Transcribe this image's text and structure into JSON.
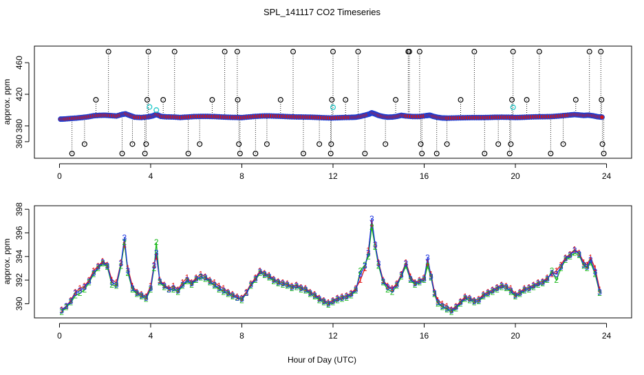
{
  "title": "SPL_141117  CO2 Timeseries",
  "xlabel": "Hour of Day (UTC)",
  "chart_data": [
    {
      "type": "scatter",
      "ylabel": "approx. ppm",
      "xlim": [
        -1.1,
        25.1
      ],
      "ylim": [
        339,
        481
      ],
      "x_ticks": [
        0,
        4,
        8,
        12,
        16,
        20,
        24
      ],
      "y_ticks": [
        360,
        380,
        420,
        460
      ],
      "grid": false,
      "colors": {
        "baseline_outline": "#1a3fd6",
        "baseline_fill": "#d01818",
        "outlier": "#000000",
        "cyan_outlier": "#20c8c8",
        "spike_line": "#000000"
      },
      "baseline": [
        [
          0.05,
          388.5
        ],
        [
          0.25,
          388.8
        ],
        [
          0.5,
          389.4
        ],
        [
          0.75,
          389.9
        ],
        [
          1.0,
          390.6
        ],
        [
          1.25,
          391.5
        ],
        [
          1.5,
          392.8
        ],
        [
          1.75,
          393.3
        ],
        [
          2.0,
          393.5
        ],
        [
          2.25,
          393.0
        ],
        [
          2.5,
          392.5
        ],
        [
          2.75,
          394.5
        ],
        [
          2.9,
          395.2
        ],
        [
          3.1,
          393.0
        ],
        [
          3.3,
          391.0
        ],
        [
          3.6,
          390.6
        ],
        [
          3.9,
          391.5
        ],
        [
          4.1,
          392.7
        ],
        [
          4.25,
          394.5
        ],
        [
          4.45,
          392.0
        ],
        [
          4.7,
          391.4
        ],
        [
          5.0,
          391.2
        ],
        [
          5.3,
          390.6
        ],
        [
          5.6,
          391.2
        ],
        [
          5.9,
          391.8
        ],
        [
          6.2,
          392.0
        ],
        [
          6.5,
          392.0
        ],
        [
          6.8,
          391.8
        ],
        [
          7.1,
          391.3
        ],
        [
          7.4,
          390.9
        ],
        [
          7.7,
          390.7
        ],
        [
          8.0,
          390.5
        ],
        [
          8.3,
          391.3
        ],
        [
          8.6,
          392.0
        ],
        [
          8.9,
          392.5
        ],
        [
          9.2,
          392.6
        ],
        [
          9.5,
          392.3
        ],
        [
          9.8,
          392.0
        ],
        [
          10.1,
          391.6
        ],
        [
          10.4,
          391.3
        ],
        [
          10.7,
          391.2
        ],
        [
          11.0,
          391.0
        ],
        [
          11.3,
          390.7
        ],
        [
          11.6,
          390.3
        ],
        [
          11.9,
          390.0
        ],
        [
          12.2,
          390.3
        ],
        [
          12.5,
          390.6
        ],
        [
          12.8,
          390.8
        ],
        [
          13.0,
          391.0
        ],
        [
          13.2,
          392.0
        ],
        [
          13.4,
          393.5
        ],
        [
          13.6,
          395.0
        ],
        [
          13.7,
          396.5
        ],
        [
          13.85,
          395.0
        ],
        [
          14.0,
          393.2
        ],
        [
          14.2,
          391.8
        ],
        [
          14.4,
          391.0
        ],
        [
          14.6,
          391.2
        ],
        [
          14.8,
          392.0
        ],
        [
          15.0,
          393.3
        ],
        [
          15.2,
          392.5
        ],
        [
          15.5,
          391.8
        ],
        [
          15.8,
          391.8
        ],
        [
          16.1,
          393.0
        ],
        [
          16.25,
          393.5
        ],
        [
          16.4,
          392.0
        ],
        [
          16.6,
          390.7
        ],
        [
          16.8,
          390.0
        ],
        [
          17.0,
          389.8
        ],
        [
          17.3,
          390.0
        ],
        [
          17.6,
          390.2
        ],
        [
          17.9,
          390.4
        ],
        [
          18.2,
          390.5
        ],
        [
          18.5,
          390.5
        ],
        [
          18.8,
          390.6
        ],
        [
          19.1,
          390.9
        ],
        [
          19.4,
          391.0
        ],
        [
          19.7,
          390.9
        ],
        [
          20.0,
          390.6
        ],
        [
          20.3,
          390.8
        ],
        [
          20.6,
          391.2
        ],
        [
          20.9,
          391.5
        ],
        [
          21.2,
          391.6
        ],
        [
          21.5,
          391.7
        ],
        [
          21.8,
          392.2
        ],
        [
          22.1,
          393.0
        ],
        [
          22.4,
          393.8
        ],
        [
          22.6,
          394.3
        ],
        [
          22.8,
          393.8
        ],
        [
          23.0,
          393.2
        ],
        [
          23.2,
          393.6
        ],
        [
          23.4,
          392.8
        ],
        [
          23.6,
          391.6
        ],
        [
          23.8,
          391.0
        ]
      ],
      "cyan_points": [
        [
          3.95,
          404
        ],
        [
          4.25,
          400
        ],
        [
          12.0,
          403.5
        ],
        [
          19.9,
          403.5
        ]
      ],
      "outliers": [
        [
          0.55,
          345
        ],
        [
          1.1,
          357
        ],
        [
          1.6,
          413
        ],
        [
          2.15,
          474
        ],
        [
          2.75,
          345
        ],
        [
          3.2,
          357
        ],
        [
          3.75,
          345
        ],
        [
          3.8,
          357
        ],
        [
          3.85,
          413
        ],
        [
          3.9,
          474
        ],
        [
          4.55,
          413
        ],
        [
          5.05,
          474
        ],
        [
          5.65,
          345
        ],
        [
          6.15,
          357
        ],
        [
          6.7,
          413
        ],
        [
          7.25,
          474
        ],
        [
          7.8,
          474
        ],
        [
          7.82,
          413
        ],
        [
          7.87,
          357
        ],
        [
          7.92,
          345
        ],
        [
          8.6,
          345
        ],
        [
          9.1,
          357
        ],
        [
          9.7,
          413
        ],
        [
          10.25,
          474
        ],
        [
          10.7,
          345
        ],
        [
          11.4,
          357
        ],
        [
          11.9,
          345
        ],
        [
          11.92,
          357
        ],
        [
          11.95,
          413
        ],
        [
          12.0,
          474
        ],
        [
          12.55,
          413
        ],
        [
          13.1,
          474
        ],
        [
          13.4,
          345
        ],
        [
          14.3,
          357
        ],
        [
          14.75,
          413
        ],
        [
          15.3,
          474
        ],
        [
          15.35,
          474
        ],
        [
          15.8,
          474
        ],
        [
          15.85,
          357
        ],
        [
          15.9,
          345
        ],
        [
          16.55,
          345
        ],
        [
          17.0,
          357
        ],
        [
          17.6,
          413
        ],
        [
          18.2,
          474
        ],
        [
          18.65,
          345
        ],
        [
          19.25,
          357
        ],
        [
          19.75,
          345
        ],
        [
          19.8,
          357
        ],
        [
          19.85,
          413
        ],
        [
          19.9,
          474
        ],
        [
          20.5,
          413
        ],
        [
          21.05,
          474
        ],
        [
          21.55,
          345
        ],
        [
          22.1,
          357
        ],
        [
          22.65,
          413
        ],
        [
          23.25,
          474
        ],
        [
          23.75,
          474
        ],
        [
          23.78,
          413
        ],
        [
          23.82,
          357
        ],
        [
          23.88,
          345
        ]
      ]
    },
    {
      "type": "line",
      "ylabel": "approx. ppm",
      "xlim": [
        -1.1,
        25.1
      ],
      "ylim": [
        388.8,
        398.3
      ],
      "x_ticks": [
        0,
        4,
        8,
        12,
        16,
        20,
        24
      ],
      "y_ticks": [
        390,
        392,
        394,
        396,
        398
      ],
      "grid": false,
      "marker_labels": [
        "1",
        "2",
        "3"
      ],
      "colors": {
        "1": "#e01818",
        "2": "#18b818",
        "3": "#1830e0"
      },
      "x": [
        0.1,
        0.3,
        0.5,
        0.7,
        0.9,
        1.1,
        1.3,
        1.5,
        1.7,
        1.9,
        2.1,
        2.3,
        2.5,
        2.7,
        2.85,
        3.0,
        3.2,
        3.4,
        3.6,
        3.8,
        4.0,
        4.15,
        4.25,
        4.4,
        4.6,
        4.8,
        5.0,
        5.2,
        5.4,
        5.6,
        5.8,
        6.0,
        6.2,
        6.4,
        6.6,
        6.8,
        7.0,
        7.2,
        7.4,
        7.6,
        7.8,
        8.0,
        8.2,
        8.4,
        8.6,
        8.8,
        9.0,
        9.2,
        9.4,
        9.6,
        9.8,
        10.0,
        10.2,
        10.4,
        10.6,
        10.8,
        11.0,
        11.2,
        11.4,
        11.6,
        11.8,
        12.0,
        12.2,
        12.4,
        12.6,
        12.8,
        13.0,
        13.2,
        13.4,
        13.55,
        13.7,
        13.85,
        14.0,
        14.2,
        14.4,
        14.6,
        14.8,
        15.0,
        15.2,
        15.4,
        15.6,
        15.8,
        16.0,
        16.15,
        16.3,
        16.45,
        16.6,
        16.8,
        17.0,
        17.2,
        17.4,
        17.6,
        17.8,
        18.0,
        18.2,
        18.4,
        18.6,
        18.8,
        19.0,
        19.2,
        19.4,
        19.6,
        19.8,
        20.0,
        20.2,
        20.4,
        20.6,
        20.8,
        21.0,
        21.2,
        21.4,
        21.6,
        21.8,
        22.0,
        22.2,
        22.4,
        22.6,
        22.8,
        23.0,
        23.15,
        23.3,
        23.5,
        23.7
      ],
      "series": [
        {
          "name": "1",
          "values": [
            389.5,
            389.8,
            390.3,
            391.0,
            391.3,
            391.5,
            392.0,
            392.8,
            393.2,
            393.6,
            393.3,
            392.0,
            391.8,
            393.5,
            395.0,
            393.0,
            391.5,
            391.0,
            390.8,
            390.6,
            391.5,
            393.3,
            394.0,
            392.0,
            391.6,
            391.3,
            391.5,
            391.2,
            391.8,
            392.2,
            391.8,
            392.2,
            392.5,
            392.3,
            392.0,
            391.8,
            391.5,
            391.3,
            391.0,
            390.8,
            390.6,
            390.5,
            391.0,
            391.7,
            392.2,
            392.8,
            392.6,
            392.4,
            392.1,
            391.9,
            391.8,
            391.7,
            391.5,
            391.6,
            391.4,
            391.3,
            391.0,
            390.8,
            390.5,
            390.3,
            390.1,
            390.3,
            390.5,
            390.6,
            390.7,
            390.9,
            391.3,
            392.0,
            393.0,
            394.5,
            396.8,
            395.0,
            393.5,
            392.0,
            391.5,
            391.3,
            391.7,
            392.5,
            393.5,
            392.3,
            391.8,
            392.0,
            392.2,
            393.5,
            392.5,
            391.0,
            390.3,
            390.0,
            389.8,
            389.5,
            389.8,
            390.2,
            390.6,
            390.5,
            390.3,
            390.4,
            390.8,
            391.0,
            391.2,
            391.4,
            391.6,
            391.5,
            391.3,
            390.8,
            391.0,
            391.3,
            391.4,
            391.6,
            391.8,
            391.9,
            392.2,
            392.5,
            392.8,
            393.3,
            393.9,
            394.2,
            394.6,
            394.3,
            393.5,
            393.3,
            393.9,
            393.0,
            391.2
          ]
        },
        {
          "name": "2",
          "values": [
            389.3,
            389.7,
            390.1,
            390.7,
            390.9,
            391.2,
            391.8,
            392.5,
            393.0,
            393.4,
            393.1,
            391.6,
            391.5,
            393.2,
            395.2,
            392.6,
            391.2,
            390.8,
            390.6,
            390.4,
            391.2,
            393.0,
            395.2,
            391.8,
            391.4,
            391.2,
            391.2,
            391.0,
            391.5,
            391.9,
            391.6,
            392.0,
            392.2,
            392.1,
            391.8,
            391.5,
            391.2,
            391.0,
            390.8,
            390.6,
            390.5,
            390.3,
            390.9,
            391.5,
            392.0,
            392.6,
            392.4,
            392.2,
            391.9,
            391.7,
            391.6,
            391.5,
            391.3,
            391.4,
            391.2,
            391.1,
            390.8,
            390.6,
            390.3,
            390.1,
            389.9,
            390.1,
            390.3,
            390.4,
            390.5,
            390.7,
            391.1,
            392.8,
            393.3,
            394.0,
            396.5,
            394.8,
            393.2,
            391.8,
            391.2,
            391.0,
            391.5,
            392.3,
            393.2,
            392.0,
            391.6,
            391.8,
            392.0,
            393.2,
            392.2,
            390.8,
            390.0,
            389.7,
            389.5,
            389.3,
            389.6,
            390.0,
            390.4,
            390.3,
            390.1,
            390.2,
            390.6,
            390.8,
            391.0,
            391.2,
            391.4,
            391.3,
            391.0,
            390.6,
            390.8,
            391.1,
            391.2,
            391.4,
            391.6,
            391.7,
            392.0,
            392.8,
            392.0,
            393.0,
            393.7,
            394.0,
            394.3,
            394.1,
            393.2,
            393.0,
            393.5,
            392.5,
            390.9
          ]
        },
        {
          "name": "3",
          "values": [
            389.4,
            389.8,
            390.2,
            390.9,
            391.1,
            391.4,
            391.9,
            392.6,
            393.1,
            393.5,
            393.2,
            391.8,
            391.6,
            393.4,
            395.6,
            392.8,
            391.3,
            390.9,
            390.7,
            390.5,
            391.3,
            393.2,
            394.3,
            391.9,
            391.5,
            391.2,
            391.3,
            391.1,
            391.6,
            392.0,
            391.7,
            392.1,
            392.3,
            392.2,
            391.9,
            391.6,
            391.3,
            391.1,
            390.9,
            390.7,
            390.5,
            390.4,
            390.9,
            391.6,
            392.1,
            392.7,
            392.5,
            392.3,
            392.0,
            391.8,
            391.7,
            391.6,
            391.4,
            391.5,
            391.3,
            391.2,
            390.9,
            390.7,
            390.4,
            390.2,
            390.0,
            390.2,
            390.4,
            390.5,
            390.6,
            390.8,
            391.2,
            392.5,
            393.2,
            394.3,
            397.2,
            395.0,
            393.4,
            391.9,
            391.4,
            391.2,
            391.6,
            392.4,
            393.4,
            392.1,
            391.7,
            391.9,
            392.1,
            393.9,
            392.3,
            390.9,
            390.1,
            389.8,
            389.6,
            389.4,
            389.7,
            390.1,
            390.5,
            390.4,
            390.2,
            390.3,
            390.7,
            390.9,
            391.1,
            391.3,
            391.5,
            391.4,
            391.1,
            390.7,
            390.9,
            391.2,
            391.3,
            391.5,
            391.7,
            391.8,
            392.1,
            392.6,
            392.5,
            393.1,
            393.8,
            394.1,
            394.5,
            394.2,
            393.3,
            393.1,
            393.7,
            392.7,
            391.0
          ]
        }
      ]
    }
  ]
}
